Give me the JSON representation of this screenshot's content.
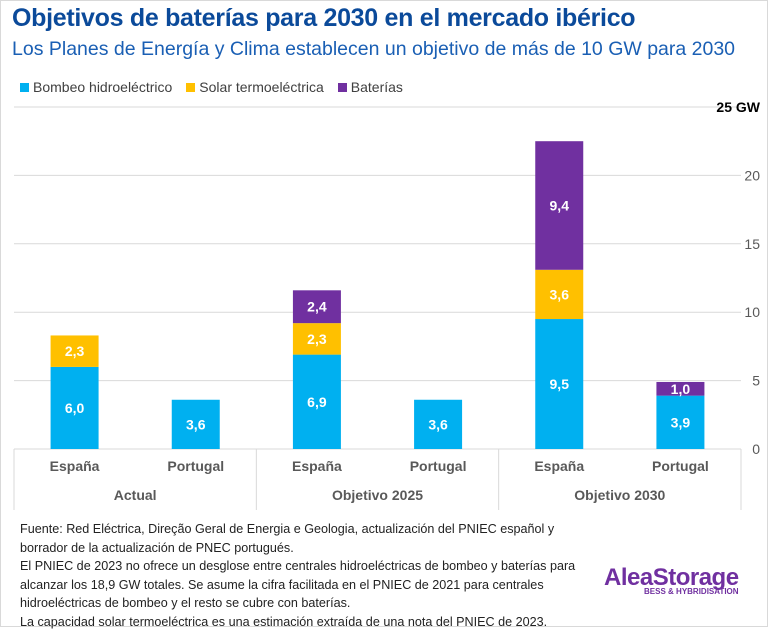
{
  "title": "Objetivos de baterías para 2030 en el mercado ibérico",
  "subtitle": "Los Planes de Energía y Clima establecen un objetivo de más de 10 GW para 2030",
  "notes": [
    "Fuente: Red Eléctrica, Direção Geral de Energia e Geologia, actualización del PNIEC español y borrador de la actualización de PNEC portugués.",
    "El PNIEC de 2023 no ofrece un desglose entre centrales hidroeléctricas de bombeo y baterías para alcanzar los 18,9 GW totales. Se asume la cifra facilitada en el PNIEC de 2021 para centrales hidroeléctricas de bombeo y el resto se cubre con baterías.",
    "La capacidad solar termoeléctrica es una estimación extraída de una nota del PNIEC de 2023."
  ],
  "logo": {
    "name": "AleaStorage",
    "tagline": "BESS & HYBRIDISATION"
  },
  "chart_data": {
    "type": "bar",
    "stacked": true,
    "categories": [
      "España",
      "Portugal",
      "España",
      "Portugal",
      "España",
      "Portugal"
    ],
    "groups": [
      {
        "label": "Actual",
        "span": 2
      },
      {
        "label": "Objetivo 2025",
        "span": 2
      },
      {
        "label": "Objetivo 2030",
        "span": 2
      }
    ],
    "series": [
      {
        "name": "Bombeo hidroeléctrico",
        "color": "#00b0f0",
        "values": [
          6.0,
          3.6,
          6.9,
          3.6,
          9.5,
          3.9
        ],
        "labels": [
          "6,0",
          "3,6",
          "6,9",
          "3,6",
          "9,5",
          "3,9"
        ]
      },
      {
        "name": "Solar termoeléctrica",
        "color": "#ffc000",
        "values": [
          2.3,
          0,
          2.3,
          0,
          3.6,
          0
        ],
        "labels": [
          "2,3",
          "",
          "2,3",
          "",
          "3,6",
          ""
        ]
      },
      {
        "name": "Baterías",
        "color": "#7030a0",
        "values": [
          0,
          0,
          2.4,
          0,
          9.4,
          1.0
        ],
        "labels": [
          "",
          "",
          "2,4",
          "",
          "9,4",
          "1,0"
        ]
      }
    ],
    "yticks": [
      "0",
      "5",
      "10",
      "15",
      "20",
      "25 GW"
    ],
    "ytick_values": [
      0,
      5,
      10,
      15,
      20,
      25
    ],
    "ylim": [
      0,
      25
    ],
    "grid": true,
    "legend": "top-left"
  }
}
